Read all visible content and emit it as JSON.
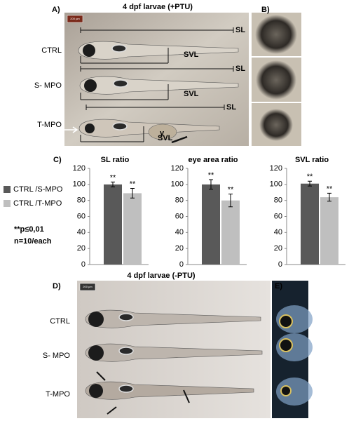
{
  "panel_a": {
    "label": "A)",
    "title": "4 dpf larvae (+PTU)",
    "scale_bar": "200 µm",
    "rows": [
      "CTRL",
      "S- MPO",
      "T-MPO"
    ],
    "length_label": "SL",
    "ventral_label": "SVL",
    "yolk_label": "y"
  },
  "panel_b": {
    "label": "B)"
  },
  "panel_c": {
    "label": "C)",
    "legend": [
      {
        "name": "CTRL /S-MPO",
        "color": "#595959"
      },
      {
        "name": "CTRL /T-MPO",
        "color": "#bfbfbf"
      }
    ],
    "stats": [
      "**p≤0,01",
      "n=10/each"
    ]
  },
  "chart_data": [
    {
      "type": "bar",
      "title": "SL ratio",
      "values": [
        100,
        89
      ],
      "errors": [
        3,
        6
      ],
      "annotations": [
        "**",
        "**"
      ],
      "ylim": [
        0,
        120
      ],
      "yticks": [
        0,
        20,
        40,
        60,
        80,
        100,
        120
      ]
    },
    {
      "type": "bar",
      "title": "eye area ratio",
      "values": [
        100,
        80
      ],
      "errors": [
        6,
        8
      ],
      "annotations": [
        "**",
        "**"
      ],
      "ylim": [
        0,
        120
      ],
      "yticks": [
        0,
        20,
        40,
        60,
        80,
        100,
        120
      ]
    },
    {
      "type": "bar",
      "title": "SVL ratio",
      "values": [
        101,
        84
      ],
      "errors": [
        3,
        5
      ],
      "annotations": [
        "**",
        "**"
      ],
      "ylim": [
        0,
        120
      ],
      "yticks": [
        0,
        20,
        40,
        60,
        80,
        100,
        120
      ]
    }
  ],
  "panel_d": {
    "label": "D)",
    "title": "4 dpf larvae (-PTU)",
    "scale_bar": "200 µm",
    "rows": [
      "CTRL",
      "S- MPO",
      "T-MPO"
    ]
  },
  "panel_e": {
    "label": "E)"
  }
}
